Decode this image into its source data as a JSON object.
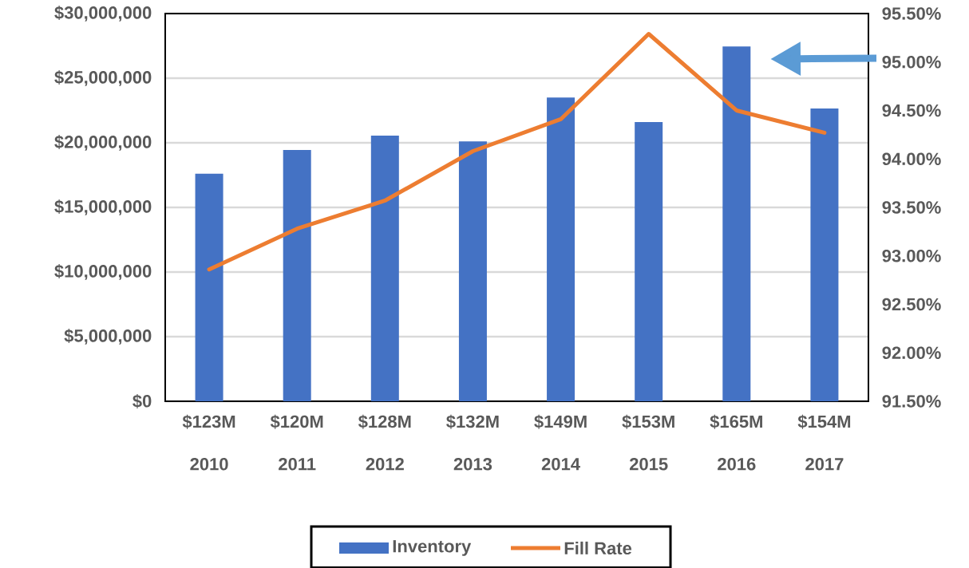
{
  "chart_data": {
    "type": "bar",
    "categories": [
      "2010",
      "2011",
      "2012",
      "2013",
      "2014",
      "2015",
      "2016",
      "2017"
    ],
    "series": [
      {
        "name": "Inventory",
        "type": "bar",
        "color": "#4472c4",
        "values": [
          17600000,
          19450000,
          20550000,
          20100000,
          23500000,
          21600000,
          27450000,
          22650000
        ]
      },
      {
        "name": "Fill Rate",
        "type": "line",
        "axis": "y2",
        "color": "#ed7d31",
        "values": [
          92.86,
          93.28,
          93.57,
          94.08,
          94.41,
          95.29,
          94.5,
          94.27
        ]
      }
    ],
    "ylim": [
      0,
      30000000
    ],
    "yticks": [
      {
        "value": 0,
        "label": "$0"
      },
      {
        "value": 5000000,
        "label": "$5,000,000"
      },
      {
        "value": 10000000,
        "label": "$10,000,000"
      },
      {
        "value": 15000000,
        "label": "$15,000,000"
      },
      {
        "value": 20000000,
        "label": "$20,000,000"
      },
      {
        "value": 25000000,
        "label": "$25,000,000"
      },
      {
        "value": 30000000,
        "label": "$30,000,000"
      }
    ],
    "y2lim": [
      91.5,
      95.5
    ],
    "y2ticks": [
      {
        "value": 91.5,
        "label": "91.50%"
      },
      {
        "value": 92,
        "label": "92.00%"
      },
      {
        "value": 92.5,
        "label": "92.50%"
      },
      {
        "value": 93,
        "label": "93.00%"
      },
      {
        "value": 93.5,
        "label": "93.50%"
      },
      {
        "value": 94,
        "label": "94.00%"
      },
      {
        "value": 94.5,
        "label": "94.50%"
      },
      {
        "value": 95,
        "label": "95.00%"
      },
      {
        "value": 95.5,
        "label": "95.50%"
      }
    ],
    "annotations": [
      "$123M",
      "$120M",
      "$128M",
      "$132M",
      "$149M",
      "$153M",
      "$165M",
      "$154M"
    ],
    "grid": "y",
    "legend": "bottom",
    "marker": "none",
    "line_style": "solid"
  }
}
